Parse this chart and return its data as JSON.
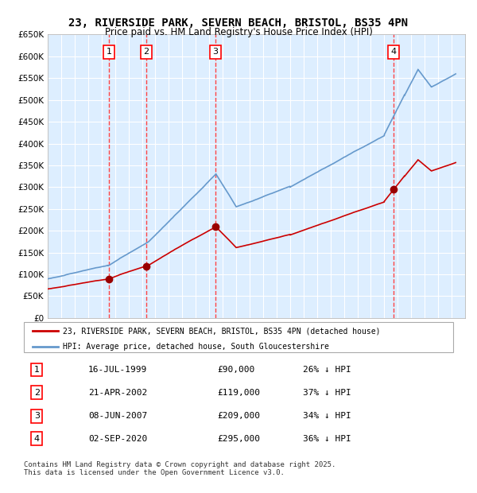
{
  "title": "23, RIVERSIDE PARK, SEVERN BEACH, BRISTOL, BS35 4PN",
  "subtitle": "Price paid vs. HM Land Registry's House Price Index (HPI)",
  "background_color": "#ffffff",
  "plot_bg_color": "#ddeeff",
  "grid_color": "#ffffff",
  "ylim": [
    0,
    650000
  ],
  "yticks": [
    0,
    50000,
    100000,
    150000,
    200000,
    250000,
    300000,
    350000,
    400000,
    450000,
    500000,
    550000,
    600000,
    650000
  ],
  "xlim_start": 1995,
  "xlim_end": 2026,
  "xticks": [
    1995,
    1996,
    1997,
    1998,
    1999,
    2000,
    2001,
    2002,
    2003,
    2004,
    2005,
    2006,
    2007,
    2008,
    2009,
    2010,
    2011,
    2012,
    2013,
    2014,
    2015,
    2016,
    2017,
    2018,
    2019,
    2020,
    2021,
    2022,
    2023,
    2024,
    2025
  ],
  "hpi_color": "#6699cc",
  "price_color": "#cc0000",
  "sale_marker_color": "#990000",
  "vline_color": "#ff4444",
  "purchases": [
    {
      "label": "1",
      "date_x": 1999.54,
      "price": 90000,
      "date_str": "16-JUL-1999",
      "pct": "26%"
    },
    {
      "label": "2",
      "date_x": 2002.31,
      "price": 119000,
      "date_str": "21-APR-2002",
      "pct": "37%"
    },
    {
      "label": "3",
      "date_x": 2007.44,
      "price": 209000,
      "date_str": "08-JUN-2007",
      "pct": "34%"
    },
    {
      "label": "4",
      "date_x": 2020.67,
      "price": 295000,
      "date_str": "02-SEP-2020",
      "pct": "36%"
    }
  ],
  "legend_label_price": "23, RIVERSIDE PARK, SEVERN BEACH, BRISTOL, BS35 4PN (detached house)",
  "legend_label_hpi": "HPI: Average price, detached house, South Gloucestershire",
  "footer": "Contains HM Land Registry data © Crown copyright and database right 2025.\nThis data is licensed under the Open Government Licence v3.0.",
  "table_rows": [
    {
      "num": "1",
      "date": "16-JUL-1999",
      "price": "£90,000",
      "pct": "26% ↓ HPI"
    },
    {
      "num": "2",
      "date": "21-APR-2002",
      "price": "£119,000",
      "pct": "37% ↓ HPI"
    },
    {
      "num": "3",
      "date": "08-JUN-2007",
      "price": "£209,000",
      "pct": "34% ↓ HPI"
    },
    {
      "num": "4",
      "date": "02-SEP-2020",
      "price": "£295,000",
      "pct": "36% ↓ HPI"
    }
  ]
}
